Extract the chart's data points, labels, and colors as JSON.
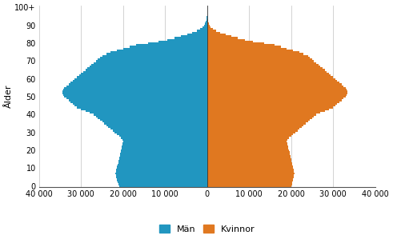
{
  "ylabel": "Ålder",
  "man_color": "#2196C0",
  "kvinna_color": "#E07820",
  "background_color": "#ffffff",
  "xlim": 40000,
  "xticks": [
    -40000,
    -30000,
    -20000,
    -10000,
    0,
    10000,
    20000,
    30000,
    40000
  ],
  "xtick_labels": [
    "40 000",
    "30 000",
    "20 000",
    "10 000",
    "0",
    "10 000",
    "20 000",
    "30 000",
    "40 000"
  ],
  "ages": [
    0,
    1,
    2,
    3,
    4,
    5,
    6,
    7,
    8,
    9,
    10,
    11,
    12,
    13,
    14,
    15,
    16,
    17,
    18,
    19,
    20,
    21,
    22,
    23,
    24,
    25,
    26,
    27,
    28,
    29,
    30,
    31,
    32,
    33,
    34,
    35,
    36,
    37,
    38,
    39,
    40,
    41,
    42,
    43,
    44,
    45,
    46,
    47,
    48,
    49,
    50,
    51,
    52,
    53,
    54,
    55,
    56,
    57,
    58,
    59,
    60,
    61,
    62,
    63,
    64,
    65,
    66,
    67,
    68,
    69,
    70,
    71,
    72,
    73,
    74,
    75,
    76,
    77,
    78,
    79,
    80,
    81,
    82,
    83,
    84,
    85,
    86,
    87,
    88,
    89,
    90,
    91,
    92,
    93,
    94,
    95,
    96,
    97,
    98,
    99,
    100
  ],
  "man": [
    21000,
    21200,
    21300,
    21400,
    21500,
    21600,
    21700,
    21800,
    21700,
    21600,
    21500,
    21400,
    21300,
    21200,
    21100,
    21000,
    20900,
    20800,
    20700,
    20600,
    20500,
    20400,
    20300,
    20200,
    20100,
    20000,
    20200,
    20500,
    21000,
    21500,
    22000,
    22500,
    23000,
    23500,
    24000,
    24500,
    25000,
    25500,
    26000,
    26500,
    27000,
    28000,
    29000,
    30000,
    31000,
    31500,
    32000,
    32500,
    33000,
    33500,
    34000,
    34200,
    34400,
    34500,
    34300,
    34000,
    33500,
    33000,
    32500,
    32000,
    31500,
    31000,
    30500,
    30000,
    29500,
    29000,
    28500,
    28000,
    27500,
    27000,
    26500,
    26000,
    25500,
    25000,
    24000,
    23000,
    21500,
    20000,
    18500,
    17000,
    14000,
    11500,
    9500,
    7800,
    6200,
    4800,
    3500,
    2500,
    1700,
    1100,
    700,
    480,
    320,
    200,
    120,
    70,
    35,
    18,
    8,
    3,
    1
  ],
  "kvinna": [
    20000,
    20200,
    20300,
    20400,
    20500,
    20600,
    20700,
    20800,
    20700,
    20600,
    20500,
    20400,
    20300,
    20200,
    20100,
    20000,
    19900,
    19800,
    19700,
    19600,
    19500,
    19400,
    19300,
    19200,
    19100,
    19000,
    19200,
    19500,
    20000,
    20500,
    21000,
    21500,
    22000,
    22500,
    23000,
    23500,
    24000,
    24500,
    25000,
    25500,
    26000,
    27000,
    28000,
    29000,
    30000,
    30500,
    31000,
    31500,
    32000,
    32500,
    33000,
    33200,
    33400,
    33500,
    33300,
    33000,
    32500,
    32000,
    31500,
    31000,
    30500,
    30000,
    29500,
    29000,
    28500,
    28000,
    27500,
    27000,
    26500,
    26000,
    25500,
    25000,
    24500,
    24000,
    23000,
    22000,
    20500,
    19000,
    17500,
    16000,
    13500,
    11000,
    9000,
    7300,
    5700,
    4400,
    3100,
    2100,
    1400,
    880,
    560,
    380,
    250,
    155,
    90,
    52,
    28,
    14,
    6,
    2,
    1
  ]
}
